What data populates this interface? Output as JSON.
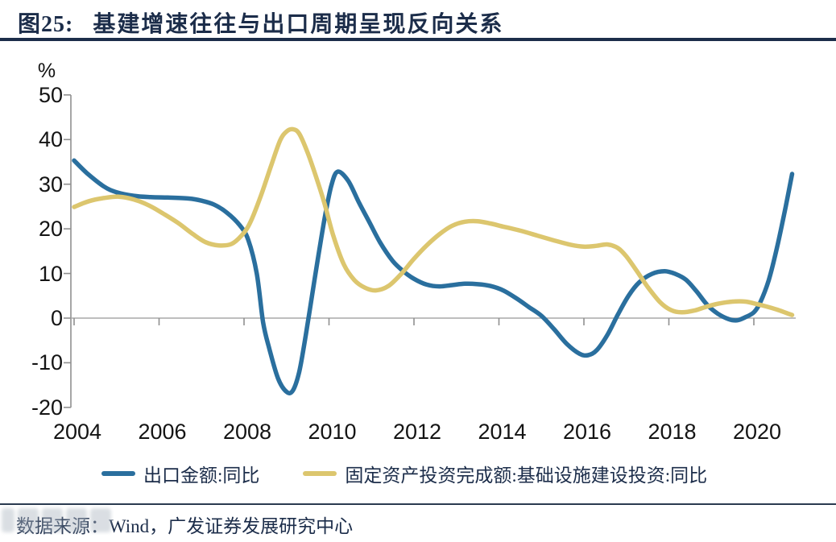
{
  "header": {
    "figure_label": "图25:",
    "title": "基建增速往往与出口周期呈现反向关系"
  },
  "footer": {
    "source": "数据来源：Wind，广发证券发展研究中心"
  },
  "colors": {
    "accent_navy": "#1c2d4a",
    "export_line": "#2a6f9e",
    "infrastructure_line": "#dcc66e",
    "axis_gray": "#8f8f8f",
    "zero_line_gray": "#a8a8a8"
  },
  "chart_data": {
    "type": "line",
    "title": "",
    "xlabel": "",
    "ylabel": "%",
    "unit_label": "%",
    "ylim": [
      -20,
      50
    ],
    "xlim": [
      2004,
      2021
    ],
    "yticks": [
      50,
      40,
      30,
      20,
      10,
      0,
      -10,
      -20
    ],
    "xticks": [
      2004,
      2006,
      2008,
      2010,
      2012,
      2014,
      2016,
      2018,
      2020
    ],
    "grid": "zero-baseline-only",
    "legend_position": "bottom",
    "series": [
      {
        "name": "出口金额:同比",
        "color": "#2a6f9e",
        "points": [
          [
            2004.0,
            35.3
          ],
          [
            2004.3,
            32.5
          ],
          [
            2004.7,
            29.5
          ],
          [
            2005.0,
            28.2
          ],
          [
            2005.4,
            27.4
          ],
          [
            2005.8,
            27.1
          ],
          [
            2006.2,
            27.0
          ],
          [
            2006.7,
            26.8
          ],
          [
            2007.0,
            26.3
          ],
          [
            2007.3,
            25.4
          ],
          [
            2007.6,
            23.6
          ],
          [
            2007.9,
            20.8
          ],
          [
            2008.1,
            17.5
          ],
          [
            2008.3,
            10.0
          ],
          [
            2008.45,
            -1.0
          ],
          [
            2008.6,
            -7.0
          ],
          [
            2008.8,
            -13.5
          ],
          [
            2009.0,
            -16.5
          ],
          [
            2009.15,
            -16.2
          ],
          [
            2009.3,
            -12.0
          ],
          [
            2009.45,
            -4.0
          ],
          [
            2009.6,
            5.0
          ],
          [
            2009.75,
            14.0
          ],
          [
            2009.9,
            22.5
          ],
          [
            2010.05,
            29.5
          ],
          [
            2010.2,
            32.8
          ],
          [
            2010.45,
            30.8
          ],
          [
            2010.7,
            26.0
          ],
          [
            2010.95,
            21.5
          ],
          [
            2011.2,
            17.0
          ],
          [
            2011.5,
            12.8
          ],
          [
            2011.75,
            10.5
          ],
          [
            2012.0,
            8.8
          ],
          [
            2012.3,
            7.5
          ],
          [
            2012.6,
            7.1
          ],
          [
            2012.9,
            7.4
          ],
          [
            2013.2,
            7.7
          ],
          [
            2013.5,
            7.6
          ],
          [
            2013.8,
            7.2
          ],
          [
            2014.1,
            6.2
          ],
          [
            2014.4,
            4.5
          ],
          [
            2014.7,
            2.5
          ],
          [
            2015.0,
            0.5
          ],
          [
            2015.3,
            -2.5
          ],
          [
            2015.6,
            -5.8
          ],
          [
            2015.9,
            -8.0
          ],
          [
            2016.1,
            -8.3
          ],
          [
            2016.3,
            -7.2
          ],
          [
            2016.55,
            -3.8
          ],
          [
            2016.8,
            0.8
          ],
          [
            2017.05,
            5.0
          ],
          [
            2017.3,
            8.0
          ],
          [
            2017.6,
            9.9
          ],
          [
            2017.9,
            10.5
          ],
          [
            2018.15,
            9.9
          ],
          [
            2018.4,
            8.6
          ],
          [
            2018.65,
            6.0
          ],
          [
            2018.9,
            3.0
          ],
          [
            2019.15,
            1.0
          ],
          [
            2019.4,
            -0.2
          ],
          [
            2019.6,
            -0.5
          ],
          [
            2019.8,
            0.2
          ],
          [
            2020.0,
            1.3
          ],
          [
            2020.15,
            3.5
          ],
          [
            2020.35,
            8.5
          ],
          [
            2020.55,
            16.0
          ],
          [
            2020.75,
            25.0
          ],
          [
            2020.9,
            32.3
          ]
        ]
      },
      {
        "name": "固定资产投资完成额:基础设施建设投资:同比",
        "color": "#dcc66e",
        "points": [
          [
            2004.0,
            24.9
          ],
          [
            2004.35,
            26.2
          ],
          [
            2004.7,
            26.9
          ],
          [
            2005.05,
            27.2
          ],
          [
            2005.4,
            26.6
          ],
          [
            2005.75,
            25.3
          ],
          [
            2006.1,
            23.4
          ],
          [
            2006.45,
            21.3
          ],
          [
            2006.8,
            18.8
          ],
          [
            2007.1,
            17.0
          ],
          [
            2007.4,
            16.3
          ],
          [
            2007.7,
            16.6
          ],
          [
            2007.95,
            18.6
          ],
          [
            2008.15,
            21.5
          ],
          [
            2008.4,
            27.5
          ],
          [
            2008.65,
            34.5
          ],
          [
            2008.85,
            39.8
          ],
          [
            2009.0,
            41.8
          ],
          [
            2009.15,
            42.3
          ],
          [
            2009.3,
            41.3
          ],
          [
            2009.5,
            37.0
          ],
          [
            2009.7,
            31.5
          ],
          [
            2009.9,
            25.5
          ],
          [
            2010.1,
            18.5
          ],
          [
            2010.35,
            12.0
          ],
          [
            2010.6,
            8.5
          ],
          [
            2010.85,
            6.8
          ],
          [
            2011.1,
            6.2
          ],
          [
            2011.4,
            7.2
          ],
          [
            2011.7,
            9.9
          ],
          [
            2012.0,
            13.3
          ],
          [
            2012.3,
            16.3
          ],
          [
            2012.6,
            18.8
          ],
          [
            2012.9,
            20.7
          ],
          [
            2013.2,
            21.6
          ],
          [
            2013.5,
            21.7
          ],
          [
            2013.8,
            21.2
          ],
          [
            2014.1,
            20.5
          ],
          [
            2014.5,
            19.6
          ],
          [
            2014.9,
            18.5
          ],
          [
            2015.3,
            17.4
          ],
          [
            2015.7,
            16.4
          ],
          [
            2016.0,
            16.0
          ],
          [
            2016.3,
            16.2
          ],
          [
            2016.55,
            16.5
          ],
          [
            2016.8,
            15.7
          ],
          [
            2017.0,
            13.8
          ],
          [
            2017.25,
            10.5
          ],
          [
            2017.5,
            7.0
          ],
          [
            2017.8,
            3.5
          ],
          [
            2018.05,
            1.8
          ],
          [
            2018.3,
            1.3
          ],
          [
            2018.6,
            1.7
          ],
          [
            2018.9,
            2.6
          ],
          [
            2019.2,
            3.3
          ],
          [
            2019.5,
            3.7
          ],
          [
            2019.8,
            3.7
          ],
          [
            2020.05,
            3.2
          ],
          [
            2020.3,
            2.6
          ],
          [
            2020.55,
            1.9
          ],
          [
            2020.75,
            1.2
          ],
          [
            2020.9,
            0.7
          ]
        ]
      }
    ]
  }
}
